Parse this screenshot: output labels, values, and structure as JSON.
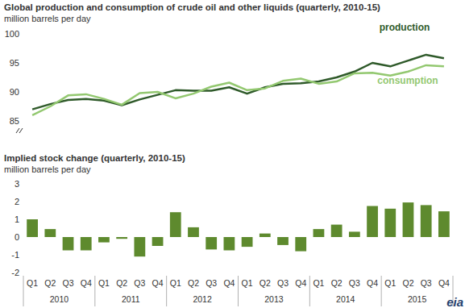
{
  "chart_data": [
    {
      "type": "line",
      "title": "Global production and consumption of crude oil and other liquids (quarterly, 2010-15)",
      "subtitle": "million barrels per day",
      "categories": [
        "Q1",
        "Q2",
        "Q3",
        "Q4",
        "Q1",
        "Q2",
        "Q3",
        "Q4",
        "Q1",
        "Q2",
        "Q3",
        "Q4",
        "Q1",
        "Q2",
        "Q3",
        "Q4",
        "Q1",
        "Q2",
        "Q3",
        "Q4",
        "Q1",
        "Q2",
        "Q3",
        "Q4"
      ],
      "series": [
        {
          "name": "production",
          "color": "#2f5a2a",
          "values": [
            87.0,
            87.9,
            88.6,
            88.8,
            88.5,
            87.7,
            88.7,
            89.5,
            90.3,
            90.2,
            90.2,
            90.8,
            89.7,
            90.8,
            91.4,
            91.5,
            91.8,
            92.5,
            93.5,
            95.0,
            94.4,
            95.4,
            96.4,
            95.8
          ]
        },
        {
          "name": "consumption",
          "color": "#93c870",
          "values": [
            86.0,
            87.5,
            89.4,
            89.6,
            88.8,
            87.8,
            89.8,
            90.0,
            88.9,
            89.7,
            90.9,
            91.6,
            90.3,
            90.6,
            91.9,
            92.3,
            91.4,
            91.8,
            93.2,
            93.3,
            92.8,
            93.5,
            94.6,
            94.4
          ]
        }
      ],
      "ylim": [
        85,
        100
      ],
      "yticks": [
        85,
        90,
        95,
        100
      ],
      "grid": false,
      "tick_labels": "y"
    },
    {
      "type": "bar",
      "title": "Implied stock change (quarterly, 2010-15)",
      "subtitle": "million barrels per day",
      "categories": [
        "Q1",
        "Q2",
        "Q3",
        "Q4",
        "Q1",
        "Q2",
        "Q3",
        "Q4",
        "Q1",
        "Q2",
        "Q3",
        "Q4",
        "Q1",
        "Q2",
        "Q3",
        "Q4",
        "Q1",
        "Q2",
        "Q3",
        "Q4",
        "Q1",
        "Q2",
        "Q3",
        "Q4"
      ],
      "years": [
        "2010",
        "2011",
        "2012",
        "2013",
        "2014",
        "2015"
      ],
      "values": [
        1.0,
        0.45,
        -0.75,
        -0.75,
        -0.3,
        -0.1,
        -1.1,
        -0.5,
        1.4,
        0.55,
        -0.7,
        -0.75,
        -0.55,
        0.2,
        -0.45,
        -0.8,
        0.45,
        0.7,
        0.3,
        1.75,
        1.6,
        1.95,
        1.8,
        1.45
      ],
      "color": "#5e8a2e",
      "ylim": [
        -2,
        3
      ],
      "yticks": [
        -2,
        -1,
        0,
        1,
        2,
        3
      ],
      "grid": false
    }
  ],
  "logo": "eia"
}
